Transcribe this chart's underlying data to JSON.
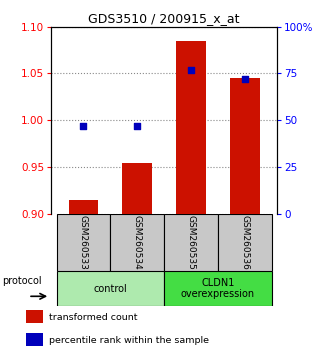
{
  "title": "GDS3510 / 200915_x_at",
  "samples": [
    "GSM260533",
    "GSM260534",
    "GSM260535",
    "GSM260536"
  ],
  "red_values": [
    0.915,
    0.955,
    1.085,
    1.045
  ],
  "blue_values": [
    47,
    47,
    77,
    72
  ],
  "ylim_left": [
    0.9,
    1.1
  ],
  "ylim_right": [
    0,
    100
  ],
  "yticks_left": [
    0.9,
    0.95,
    1.0,
    1.05,
    1.1
  ],
  "yticks_right": [
    0,
    25,
    50,
    75,
    100
  ],
  "ytick_labels_right": [
    "0",
    "25",
    "50",
    "75",
    "100%"
  ],
  "groups": [
    {
      "label": "control",
      "samples": [
        0,
        1
      ],
      "color": "#aeeaae"
    },
    {
      "label": "CLDN1\noverexpression",
      "samples": [
        2,
        3
      ],
      "color": "#44dd44"
    }
  ],
  "protocol_label": "protocol",
  "bar_color": "#cc1100",
  "dot_color": "#0000bb",
  "bar_width": 0.55,
  "dot_size": 22,
  "grid_color": "#888888",
  "sample_box_color": "#c8c8c8",
  "legend_items": [
    {
      "color": "#cc1100",
      "label": "transformed count"
    },
    {
      "color": "#0000bb",
      "label": "percentile rank within the sample"
    }
  ]
}
